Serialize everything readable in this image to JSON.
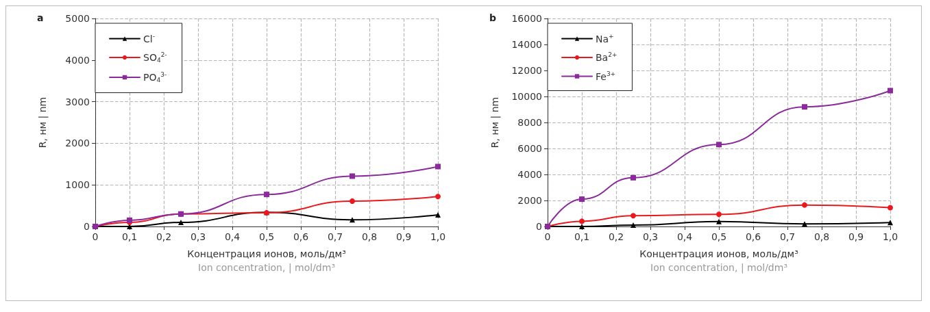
{
  "chart_data": [
    {
      "type": "line",
      "title": "a",
      "xlabel": "Концентрация ионов, моль/дм³\nIon concentration, | mol/dm³",
      "ylabel": "R, нм | nm",
      "x": [
        0,
        0.1,
        0.25,
        0.5,
        0.75,
        1.0
      ],
      "series": [
        {
          "name": "Cl$^{-}$",
          "color": "#000000",
          "marker": "triangle",
          "values": [
            0,
            0,
            100,
            340,
            160,
            280
          ]
        },
        {
          "name": "SO$_{4}$$^{2-}$",
          "color": "#e8191f",
          "marker": "circle",
          "values": [
            0,
            100,
            300,
            330,
            610,
            720
          ]
        },
        {
          "name": "PO$_{4}$$^{3-}$",
          "color": "#8b2a9b",
          "marker": "square",
          "values": [
            0,
            150,
            300,
            770,
            1210,
            1440
          ]
        }
      ],
      "xlim": [
        0,
        1
      ],
      "xticks": [
        0,
        {
          "value": 0.1,
          "label": "0,1"
        },
        {
          "value": 0.2,
          "label": "0,2"
        },
        {
          "value": 0.3,
          "label": "0,3"
        },
        {
          "value": 0.4,
          "label": "0,4"
        },
        {
          "value": 0.5,
          "label": "0,5"
        },
        {
          "value": 0.6,
          "label": "0,6"
        },
        {
          "value": 0.7,
          "label": "0,7"
        },
        {
          "value": 0.8,
          "label": "0,8"
        },
        {
          "value": 0.9,
          "label": "0,9"
        },
        {
          "value": 1,
          "label": "1,0"
        }
      ],
      "ylim": [
        0,
        5000
      ],
      "yticks": [
        0,
        1000,
        2000,
        3000,
        4000,
        5000
      ],
      "grid": true,
      "legend": "top left",
      "line_style": "solid"
    },
    {
      "type": "line",
      "title": "b",
      "xlabel": "Концентрация ионов, моль/дм³\nIon concentration, | mol/dm³",
      "ylabel": "R, нм | nm",
      "x": [
        0,
        0.1,
        0.25,
        0.5,
        0.75,
        1.0
      ],
      "series": [
        {
          "name": "Na$^{+}$",
          "color": "#000000",
          "marker": "triangle",
          "values": [
            0,
            0,
            100,
            380,
            200,
            300
          ]
        },
        {
          "name": "Ba$^{2+}$",
          "color": "#e8191f",
          "marker": "circle",
          "values": [
            0,
            400,
            830,
            930,
            1650,
            1450
          ]
        },
        {
          "name": "Fe$^{3+}$",
          "color": "#8b2a9b",
          "marker": "square",
          "values": [
            0,
            2100,
            3750,
            6300,
            9200,
            10450
          ]
        }
      ],
      "xlim": [
        0,
        1
      ],
      "xticks": [
        0,
        {
          "value": 0.1,
          "label": "0,1"
        },
        {
          "value": 0.2,
          "label": "0,2"
        },
        {
          "value": 0.3,
          "label": "0,3"
        },
        {
          "value": 0.4,
          "label": "0,4"
        },
        {
          "value": 0.5,
          "label": "0,5"
        },
        {
          "value": 0.6,
          "label": "0,6"
        },
        {
          "value": 0.7,
          "label": "0,7"
        },
        {
          "value": 0.8,
          "label": "0,8"
        },
        {
          "value": 0.9,
          "label": "0,9"
        },
        {
          "value": 1,
          "label": "1,0"
        }
      ],
      "ylim": [
        0,
        16000
      ],
      "yticks": [
        0,
        2000,
        4000,
        6000,
        8000,
        10000,
        12000,
        14000,
        16000
      ],
      "grid": true,
      "legend": "top left",
      "line_style": "solid"
    }
  ]
}
